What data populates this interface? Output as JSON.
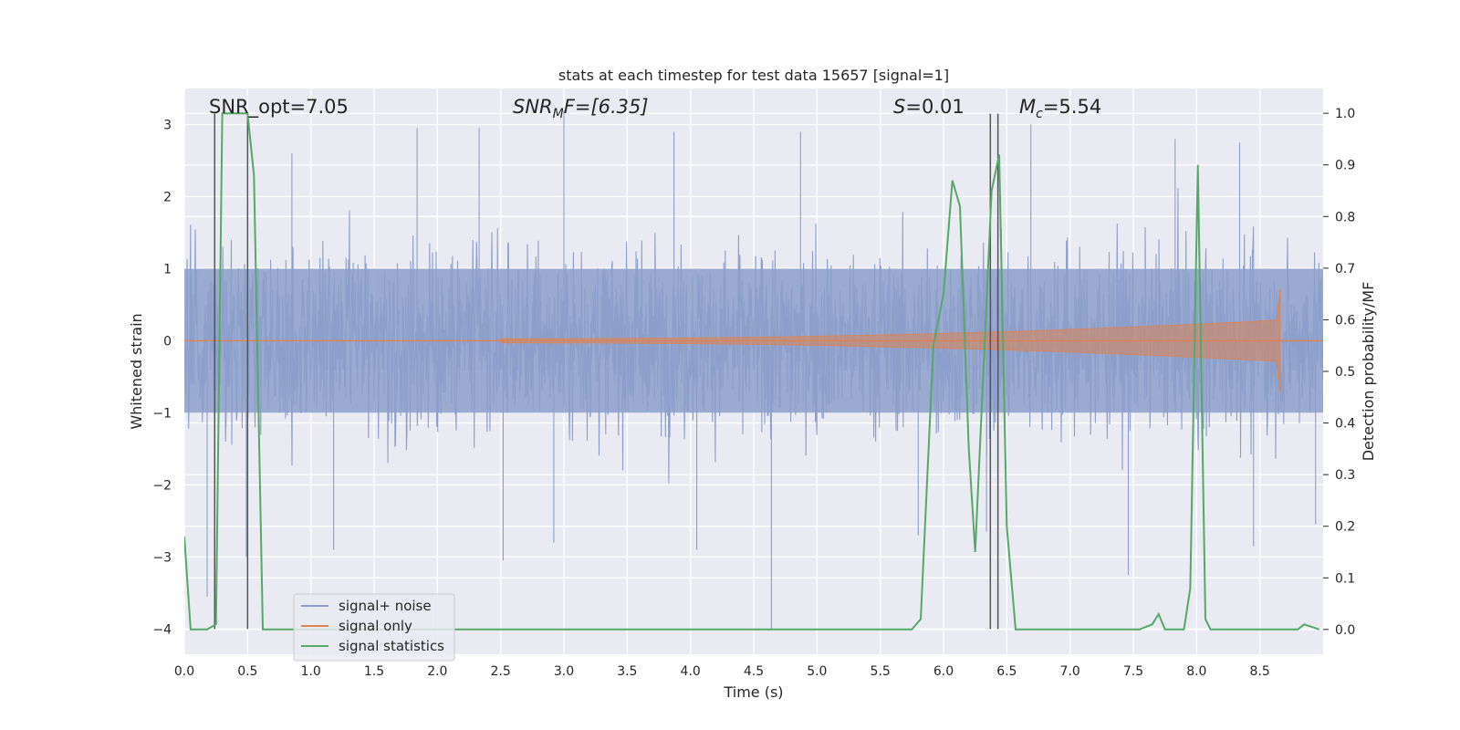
{
  "chart_data": {
    "type": "line",
    "title": "stats at each timestep for test data 15657 [signal=1]",
    "xlabel": "Time (s)",
    "ylabel": "Whitened strain",
    "ylabel_right": "Detection probability/MF",
    "xlim": [
      0.0,
      9.0
    ],
    "ylim": [
      -4.35,
      3.5
    ],
    "ylim_right": [
      -0.048,
      1.048
    ],
    "x_ticks": [
      0.0,
      0.5,
      1.0,
      1.5,
      2.0,
      2.5,
      3.0,
      3.5,
      4.0,
      4.5,
      5.0,
      5.5,
      6.0,
      6.5,
      7.0,
      7.5,
      8.0,
      8.5
    ],
    "x_tick_labels": [
      "0.0",
      "0.5",
      "1.0",
      "1.5",
      "2.0",
      "2.5",
      "3.0",
      "3.5",
      "4.0",
      "4.5",
      "5.0",
      "5.5",
      "6.0",
      "6.5",
      "7.0",
      "7.5",
      "8.0",
      "8.5"
    ],
    "y_ticks": [
      3,
      2,
      1,
      0,
      -1,
      -2,
      -3,
      -4
    ],
    "y_tick_labels": [
      "3",
      "2",
      "1",
      "0",
      "−1",
      "−2",
      "−3",
      "−4"
    ],
    "y_right_ticks": [
      1.0,
      0.9,
      0.8,
      0.7,
      0.6,
      0.5,
      0.4,
      0.3,
      0.2,
      0.1,
      0.0
    ],
    "y_right_tick_labels": [
      "1.0",
      "0.9",
      "0.8",
      "0.7",
      "0.6",
      "0.5",
      "0.4",
      "0.3",
      "0.2",
      "0.1",
      "0.0"
    ],
    "grid": true,
    "legend_position": "lower-left",
    "colors": {
      "noise": "#8c9fca",
      "signal": "#dd8452",
      "stats": "#55a868",
      "vlines": "#555555",
      "background": "#eaeaf2"
    },
    "annotations": {
      "snr_opt": "SNR_opt=7.05",
      "snr_mf_prefix": "SNR",
      "snr_mf_sub": "M",
      "snr_mf_suffix": "F=[6.35]",
      "s_var": "S",
      "s_value": "=0.01",
      "mc_var": "M",
      "mc_sub": "c",
      "mc_value": "=5.54"
    },
    "series": [
      {
        "name": "signal+ noise",
        "kind": "noise",
        "x_range": [
          0.0,
          9.0
        ],
        "envelope_typical": 1.8,
        "peaks": [
          {
            "x": 0.18,
            "y": -3.55
          },
          {
            "x": 0.49,
            "y": -3.0
          },
          {
            "x": 0.85,
            "y": 2.6
          },
          {
            "x": 1.18,
            "y": -2.9
          },
          {
            "x": 1.84,
            "y": 2.95
          },
          {
            "x": 2.33,
            "y": 2.95
          },
          {
            "x": 2.52,
            "y": -3.05
          },
          {
            "x": 2.92,
            "y": -2.8
          },
          {
            "x": 3.0,
            "y": 3.2
          },
          {
            "x": 3.87,
            "y": 2.9
          },
          {
            "x": 4.05,
            "y": -2.9
          },
          {
            "x": 4.64,
            "y": -4.0
          },
          {
            "x": 4.87,
            "y": 2.9
          },
          {
            "x": 5.8,
            "y": -2.7
          },
          {
            "x": 6.34,
            "y": -2.65
          },
          {
            "x": 6.69,
            "y": 3.0
          },
          {
            "x": 7.46,
            "y": -3.25
          },
          {
            "x": 7.83,
            "y": 2.8
          },
          {
            "x": 8.34,
            "y": 2.75
          },
          {
            "x": 8.45,
            "y": -2.85
          },
          {
            "x": 8.94,
            "y": -2.55
          }
        ]
      },
      {
        "name": "signal only",
        "kind": "chirp",
        "start": 2.5,
        "end": 8.66,
        "peak_amplitude": 0.72
      },
      {
        "name": "signal statistics",
        "kind": "line",
        "axis": "right",
        "x": [
          0.0,
          0.05,
          0.18,
          0.25,
          0.3,
          0.5,
          0.55,
          0.62,
          5.75,
          5.82,
          5.92,
          6.0,
          6.07,
          6.13,
          6.2,
          6.25,
          6.38,
          6.44,
          6.5,
          6.57,
          7.55,
          7.65,
          7.7,
          7.75,
          7.9,
          7.95,
          8.01,
          8.07,
          8.11,
          8.3,
          8.8,
          8.85,
          8.97
        ],
        "y": [
          0.18,
          0.0,
          0.0,
          0.01,
          1.0,
          1.0,
          0.88,
          0.0,
          0.0,
          0.02,
          0.55,
          0.65,
          0.87,
          0.82,
          0.35,
          0.15,
          0.85,
          0.92,
          0.2,
          0.0,
          0.0,
          0.01,
          0.03,
          0.0,
          0.0,
          0.08,
          0.9,
          0.02,
          0.0,
          0.0,
          0.0,
          0.01,
          0.0
        ]
      }
    ],
    "vlines": [
      0.24,
      0.5,
      6.37,
      6.43
    ],
    "vline_range": [
      -4.0,
      3.15
    ]
  }
}
